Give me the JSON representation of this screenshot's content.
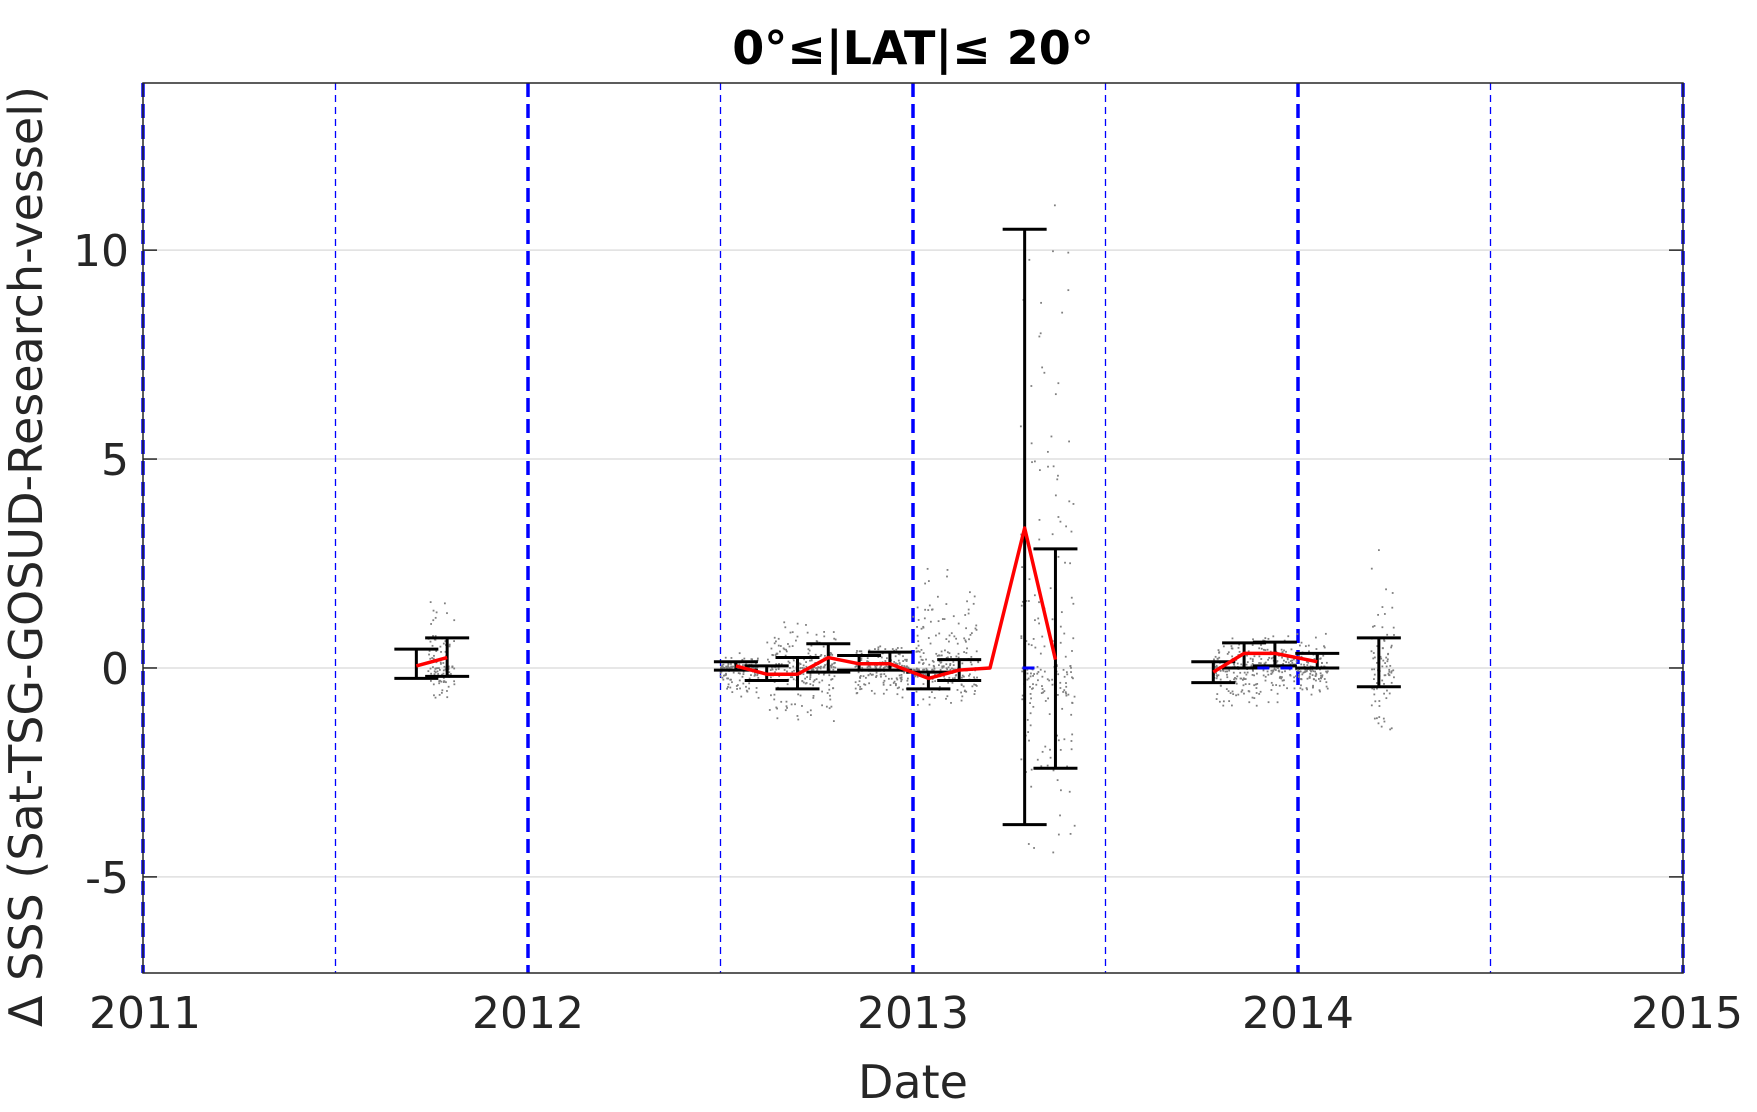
{
  "chart_data": {
    "type": "scatter",
    "title": "0°≤|LAT|≤ 20°",
    "xlabel": "Date",
    "ylabel": "Δ SSS (Sat-TSG-GOSUD-Research-vessel)",
    "xlim": [
      2011,
      2015
    ],
    "ylim": [
      -7.3,
      14
    ],
    "x_ticks": [
      "2011",
      "2012",
      "2013",
      "2014",
      "2015"
    ],
    "y_ticks": [
      "10",
      "5",
      "0",
      "-5"
    ],
    "y_tick_values": [
      10,
      5,
      0,
      -5
    ],
    "grid": "horizontal",
    "year_lines": [
      2011,
      2012,
      2013,
      2014,
      2015
    ],
    "half_year_lines": [
      2011.5,
      2012.5,
      2013.5,
      2014.5
    ],
    "mean_line": {
      "color": "#ff0000",
      "segments": [
        [
          [
            2011.71,
            0.05
          ],
          [
            2011.79,
            0.25
          ]
        ],
        [
          [
            2012.54,
            0.05
          ],
          [
            2012.62,
            -0.15
          ],
          [
            2012.7,
            -0.15
          ],
          [
            2012.78,
            0.25
          ],
          [
            2012.86,
            0.1
          ],
          [
            2012.94,
            0.1
          ],
          [
            2013.04,
            -0.25
          ],
          [
            2013.12,
            -0.05
          ],
          [
            2013.2,
            0.0
          ],
          [
            2013.29,
            3.35
          ],
          [
            2013.37,
            0.2
          ]
        ],
        [
          [
            2013.78,
            -0.1
          ],
          [
            2013.86,
            0.35
          ],
          [
            2013.94,
            0.35
          ],
          [
            2014.05,
            0.15
          ]
        ]
      ]
    },
    "error_bars": [
      {
        "x": 2011.71,
        "low": -0.25,
        "high": 0.45
      },
      {
        "x": 2011.79,
        "low": -0.2,
        "high": 0.72
      },
      {
        "x": 2012.54,
        "low": -0.05,
        "high": 0.15
      },
      {
        "x": 2012.62,
        "low": -0.3,
        "high": 0.05
      },
      {
        "x": 2012.7,
        "low": -0.5,
        "high": 0.25
      },
      {
        "x": 2012.78,
        "low": -0.1,
        "high": 0.58
      },
      {
        "x": 2012.86,
        "low": -0.05,
        "high": 0.3
      },
      {
        "x": 2012.94,
        "low": -0.05,
        "high": 0.38
      },
      {
        "x": 2013.04,
        "low": -0.5,
        "high": -0.1
      },
      {
        "x": 2013.12,
        "low": -0.3,
        "high": 0.2
      },
      {
        "x": 2013.29,
        "low": -3.75,
        "high": 10.5
      },
      {
        "x": 2013.37,
        "low": -2.4,
        "high": 2.85
      },
      {
        "x": 2013.78,
        "low": -0.35,
        "high": 0.15
      },
      {
        "x": 2013.86,
        "low": 0.0,
        "high": 0.6
      },
      {
        "x": 2013.94,
        "low": 0.05,
        "high": 0.62
      },
      {
        "x": 2014.05,
        "low": 0.0,
        "high": 0.35
      },
      {
        "x": 2014.21,
        "low": -0.45,
        "high": 0.72
      }
    ],
    "scatter_clusters": [
      {
        "x_start": 2011.74,
        "x_end": 2011.81,
        "y_min": -0.9,
        "y_max": 2.0
      },
      {
        "x_start": 2012.5,
        "x_end": 2012.6,
        "y_min": -0.8,
        "y_max": 0.4
      },
      {
        "x_start": 2012.62,
        "x_end": 2012.8,
        "y_min": -1.5,
        "y_max": 1.2
      },
      {
        "x_start": 2012.85,
        "x_end": 2012.99,
        "y_min": -0.8,
        "y_max": 0.6
      },
      {
        "x_start": 2013.0,
        "x_end": 2013.17,
        "y_min": -1.0,
        "y_max": 2.7
      },
      {
        "x_start": 2013.28,
        "x_end": 2013.42,
        "y_min": -5.0,
        "y_max": 14.0
      },
      {
        "x_start": 2013.78,
        "x_end": 2014.08,
        "y_min": -1.0,
        "y_max": 0.9
      },
      {
        "x_start": 2014.19,
        "x_end": 2014.25,
        "y_min": -1.9,
        "y_max": 2.9
      }
    ],
    "blue_median_marks": [
      {
        "x": 2013.3,
        "y": 0.0
      },
      {
        "x": 2013.91,
        "y": 0.0
      },
      {
        "x": 2013.97,
        "y": 0.0
      }
    ],
    "colors": {
      "mean": "#ff0000",
      "error_bar": "#000000",
      "scatter": "#808080",
      "year_line": "#0000ff",
      "grid": "#dfdfdf",
      "axis": "#262626"
    }
  }
}
